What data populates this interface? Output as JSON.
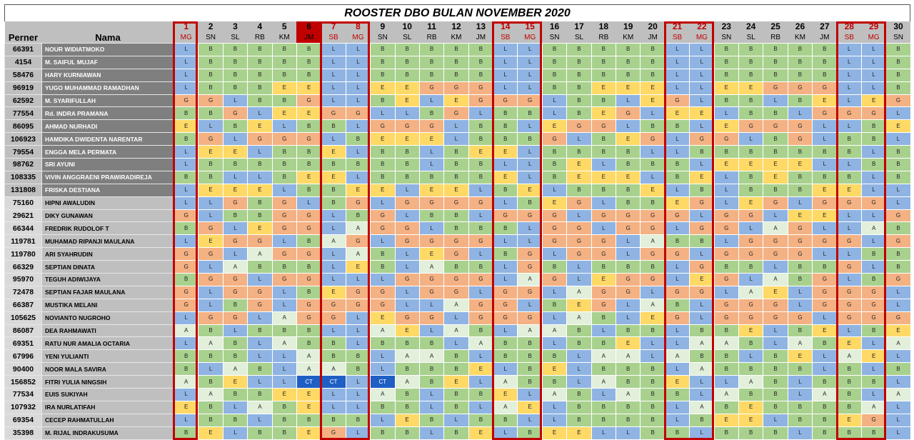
{
  "title": "ROOSTER DBO BULAN NOVEMBER 2020",
  "headers": {
    "perner": "Perner",
    "nama": "Nama"
  },
  "days": [
    {
      "num": "1",
      "code": "MG"
    },
    {
      "num": "2",
      "code": "SN"
    },
    {
      "num": "3",
      "code": "SL"
    },
    {
      "num": "4",
      "code": "RB"
    },
    {
      "num": "5",
      "code": "KM"
    },
    {
      "num": "6",
      "code": "JM"
    },
    {
      "num": "7",
      "code": "SB"
    },
    {
      "num": "8",
      "code": "MG"
    },
    {
      "num": "9",
      "code": "SN"
    },
    {
      "num": "10",
      "code": "SL"
    },
    {
      "num": "11",
      "code": "RB"
    },
    {
      "num": "12",
      "code": "KM"
    },
    {
      "num": "13",
      "code": "JM"
    },
    {
      "num": "14",
      "code": "SB"
    },
    {
      "num": "15",
      "code": "MG"
    },
    {
      "num": "16",
      "code": "SN"
    },
    {
      "num": "17",
      "code": "SL"
    },
    {
      "num": "18",
      "code": "RB"
    },
    {
      "num": "19",
      "code": "KM"
    },
    {
      "num": "20",
      "code": "JM"
    },
    {
      "num": "21",
      "code": "SB"
    },
    {
      "num": "22",
      "code": "MG"
    },
    {
      "num": "23",
      "code": "SN"
    },
    {
      "num": "24",
      "code": "SL"
    },
    {
      "num": "25",
      "code": "RB"
    },
    {
      "num": "26",
      "code": "KM"
    },
    {
      "num": "27",
      "code": "JM"
    },
    {
      "num": "28",
      "code": "SB"
    },
    {
      "num": "29",
      "code": "MG"
    },
    {
      "num": "30",
      "code": "SN"
    }
  ],
  "weekend_days": [
    1,
    7,
    8,
    14,
    15,
    21,
    22,
    28,
    29
  ],
  "holiday_days": [
    6
  ],
  "shift_colors": {
    "L": "#8fb4e3",
    "B": "#a9d18e",
    "G": "#f4b183",
    "E": "#ffd966",
    "A": "#e2efda",
    "CT": "#1f5fc4"
  },
  "accent_color": "#c00000",
  "rows": [
    {
      "perner": "66391",
      "nama": "NOUR WIDIATMOKO",
      "shifts": [
        "L",
        "B",
        "B",
        "B",
        "B",
        "B",
        "L",
        "L",
        "B",
        "B",
        "B",
        "B",
        "B",
        "L",
        "L",
        "B",
        "B",
        "B",
        "B",
        "B",
        "L",
        "L",
        "B",
        "B",
        "B",
        "B",
        "B",
        "L",
        "L",
        "B"
      ]
    },
    {
      "perner": "4154",
      "nama": "M. SAIFUL MUJAF",
      "shifts": [
        "L",
        "B",
        "B",
        "B",
        "B",
        "B",
        "L",
        "L",
        "B",
        "B",
        "B",
        "B",
        "B",
        "L",
        "L",
        "B",
        "B",
        "B",
        "B",
        "B",
        "L",
        "L",
        "B",
        "B",
        "B",
        "B",
        "B",
        "L",
        "L",
        "B"
      ]
    },
    {
      "perner": "58476",
      "nama": "HARY KURNIAWAN",
      "shifts": [
        "L",
        "B",
        "B",
        "B",
        "B",
        "B",
        "L",
        "L",
        "B",
        "B",
        "B",
        "B",
        "B",
        "L",
        "L",
        "B",
        "B",
        "B",
        "B",
        "B",
        "L",
        "L",
        "B",
        "B",
        "B",
        "B",
        "B",
        "L",
        "L",
        "B"
      ]
    },
    {
      "perner": "96919",
      "nama": "YUGO MUHAMMAD RAMADHAN",
      "shifts": [
        "L",
        "B",
        "B",
        "B",
        "E",
        "E",
        "L",
        "L",
        "E",
        "E",
        "G",
        "G",
        "G",
        "L",
        "L",
        "B",
        "B",
        "E",
        "E",
        "E",
        "L",
        "L",
        "E",
        "E",
        "G",
        "G",
        "G",
        "L",
        "L",
        "B"
      ]
    },
    {
      "perner": "62592",
      "nama": "M. SYARIFULLAH",
      "shifts": [
        "G",
        "G",
        "L",
        "B",
        "B",
        "G",
        "L",
        "L",
        "B",
        "E",
        "L",
        "E",
        "G",
        "G",
        "G",
        "L",
        "B",
        "B",
        "L",
        "E",
        "G",
        "L",
        "B",
        "B",
        "L",
        "B",
        "E",
        "L",
        "E",
        "G"
      ]
    },
    {
      "perner": "77554",
      "nama": "Rd. INDRA PRAMANA",
      "shifts": [
        "B",
        "B",
        "G",
        "L",
        "E",
        "E",
        "G",
        "G",
        "L",
        "L",
        "B",
        "G",
        "L",
        "B",
        "B",
        "L",
        "B",
        "E",
        "G",
        "L",
        "E",
        "E",
        "L",
        "B",
        "B",
        "L",
        "G",
        "G",
        "G",
        "L"
      ]
    },
    {
      "perner": "86095",
      "nama": "AHMAD NURHADI",
      "shifts": [
        "E",
        "L",
        "B",
        "E",
        "L",
        "B",
        "B",
        "L",
        "G",
        "G",
        "G",
        "L",
        "B",
        "B",
        "L",
        "E",
        "G",
        "G",
        "L",
        "B",
        "B",
        "L",
        "E",
        "G",
        "G",
        "G",
        "L",
        "L",
        "B",
        "E"
      ]
    },
    {
      "perner": "106923",
      "nama": "HAMDIKA DWIDENTA NARENTAR",
      "shifts": [
        "B",
        "G",
        "L",
        "G",
        "G",
        "G",
        "L",
        "B",
        "E",
        "E",
        "E",
        "L",
        "B",
        "B",
        "B",
        "G",
        "L",
        "B",
        "E",
        "G",
        "L",
        "G",
        "G",
        "L",
        "B",
        "G",
        "L",
        "B",
        "B",
        "L"
      ]
    },
    {
      "perner": "79554",
      "nama": "ENGGA MELA PERMATA",
      "shifts": [
        "L",
        "E",
        "E",
        "L",
        "B",
        "B",
        "E",
        "L",
        "B",
        "B",
        "L",
        "B",
        "E",
        "E",
        "L",
        "B",
        "B",
        "B",
        "B",
        "L",
        "L",
        "B",
        "B",
        "B",
        "B",
        "B",
        "B",
        "B",
        "L",
        "B"
      ]
    },
    {
      "perner": "98762",
      "nama": "SRI AYUNI",
      "shifts": [
        "L",
        "B",
        "B",
        "B",
        "B",
        "B",
        "B",
        "B",
        "B",
        "B",
        "L",
        "B",
        "B",
        "L",
        "L",
        "B",
        "E",
        "L",
        "B",
        "B",
        "B",
        "L",
        "E",
        "E",
        "E",
        "E",
        "L",
        "L",
        "B",
        "B"
      ]
    },
    {
      "perner": "108335",
      "nama": "VIVIN ANGGRAENI PRAWIRADIREJA",
      "shifts": [
        "B",
        "B",
        "L",
        "L",
        "B",
        "E",
        "E",
        "L",
        "B",
        "B",
        "B",
        "B",
        "B",
        "E",
        "L",
        "B",
        "E",
        "E",
        "E",
        "L",
        "B",
        "E",
        "L",
        "B",
        "E",
        "B",
        "B",
        "B",
        "L",
        "B"
      ]
    },
    {
      "perner": "131808",
      "nama": "FRISKA DESTIANA",
      "shifts": [
        "L",
        "E",
        "E",
        "E",
        "L",
        "B",
        "B",
        "E",
        "E",
        "L",
        "E",
        "E",
        "L",
        "B",
        "E",
        "L",
        "B",
        "B",
        "B",
        "E",
        "L",
        "B",
        "L",
        "B",
        "B",
        "B",
        "E",
        "E",
        "L",
        "L"
      ]
    },
    {
      "perner": "75160",
      "nama": "HIPNI AWALUDIN",
      "shifts": [
        "L",
        "L",
        "G",
        "B",
        "G",
        "L",
        "B",
        "G",
        "L",
        "G",
        "G",
        "G",
        "G",
        "L",
        "B",
        "E",
        "G",
        "L",
        "B",
        "B",
        "E",
        "G",
        "L",
        "E",
        "G",
        "L",
        "G",
        "G",
        "G",
        "L"
      ]
    },
    {
      "perner": "29621",
      "nama": "DIKY GUNAWAN",
      "shifts": [
        "G",
        "L",
        "B",
        "B",
        "G",
        "G",
        "L",
        "B",
        "G",
        "L",
        "B",
        "B",
        "L",
        "G",
        "G",
        "G",
        "L",
        "G",
        "G",
        "G",
        "G",
        "L",
        "G",
        "G",
        "L",
        "E",
        "E",
        "L",
        "L",
        "G"
      ]
    },
    {
      "perner": "66344",
      "nama": "FREDRIK RUDOLOF T",
      "shifts": [
        "B",
        "G",
        "L",
        "E",
        "G",
        "G",
        "L",
        "A",
        "G",
        "G",
        "L",
        "B",
        "B",
        "B",
        "L",
        "G",
        "G",
        "L",
        "G",
        "G",
        "L",
        "G",
        "G",
        "L",
        "A",
        "G",
        "L",
        "L",
        "A",
        "B"
      ]
    },
    {
      "perner": "119781",
      "nama": "MUHAMAD RIPANJI MAULANA",
      "shifts": [
        "L",
        "E",
        "G",
        "G",
        "L",
        "B",
        "A",
        "G",
        "L",
        "G",
        "G",
        "G",
        "G",
        "L",
        "L",
        "G",
        "G",
        "G",
        "L",
        "A",
        "B",
        "B",
        "L",
        "G",
        "G",
        "G",
        "G",
        "G",
        "L",
        "G"
      ]
    },
    {
      "perner": "119780",
      "nama": "ARI SYAHRUDIN",
      "shifts": [
        "G",
        "G",
        "L",
        "A",
        "G",
        "G",
        "L",
        "A",
        "B",
        "L",
        "E",
        "G",
        "L",
        "B",
        "G",
        "L",
        "G",
        "G",
        "L",
        "G",
        "G",
        "L",
        "G",
        "G",
        "G",
        "G",
        "L",
        "L",
        "B",
        "B"
      ]
    },
    {
      "perner": "66329",
      "nama": "SEPTIAN DINATA",
      "shifts": [
        "G",
        "L",
        "A",
        "B",
        "B",
        "B",
        "L",
        "E",
        "B",
        "L",
        "A",
        "B",
        "B",
        "L",
        "G",
        "B",
        "L",
        "B",
        "B",
        "B",
        "L",
        "G",
        "B",
        "B",
        "L",
        "B",
        "B",
        "G",
        "L",
        "B"
      ]
    },
    {
      "perner": "95970",
      "nama": "TEGUH ADIWIJAYA",
      "shifts": [
        "B",
        "G",
        "G",
        "L",
        "G",
        "G",
        "L",
        "L",
        "L",
        "G",
        "G",
        "G",
        "G",
        "L",
        "A",
        "G",
        "L",
        "E",
        "G",
        "G",
        "L",
        "E",
        "G",
        "L",
        "A",
        "B",
        "G",
        "L",
        "B",
        "G"
      ]
    },
    {
      "perner": "72478",
      "nama": "SEPTIAN FAJAR MAULANA",
      "shifts": [
        "G",
        "L",
        "G",
        "G",
        "L",
        "B",
        "E",
        "G",
        "G",
        "L",
        "G",
        "G",
        "L",
        "G",
        "G",
        "L",
        "A",
        "G",
        "G",
        "L",
        "G",
        "G",
        "L",
        "A",
        "E",
        "L",
        "G",
        "G",
        "G",
        "L"
      ]
    },
    {
      "perner": "66387",
      "nama": "MUSTIKA MELANI",
      "shifts": [
        "G",
        "L",
        "B",
        "G",
        "L",
        "G",
        "G",
        "G",
        "G",
        "L",
        "L",
        "A",
        "G",
        "G",
        "L",
        "B",
        "E",
        "G",
        "L",
        "A",
        "B",
        "L",
        "G",
        "G",
        "G",
        "L",
        "G",
        "G",
        "G",
        "L"
      ]
    },
    {
      "perner": "105625",
      "nama": "NOVIANTO NUGROHO",
      "shifts": [
        "L",
        "G",
        "G",
        "L",
        "A",
        "G",
        "G",
        "L",
        "E",
        "G",
        "G",
        "L",
        "G",
        "G",
        "G",
        "L",
        "A",
        "B",
        "L",
        "E",
        "G",
        "L",
        "G",
        "G",
        "G",
        "G",
        "L",
        "G",
        "G",
        "G"
      ]
    },
    {
      "perner": "86087",
      "nama": "DEA RAHMAWATI",
      "shifts": [
        "A",
        "B",
        "L",
        "B",
        "B",
        "B",
        "L",
        "L",
        "A",
        "E",
        "L",
        "A",
        "B",
        "L",
        "A",
        "A",
        "B",
        "L",
        "B",
        "B",
        "L",
        "B",
        "B",
        "E",
        "L",
        "B",
        "E",
        "L",
        "B",
        "E"
      ]
    },
    {
      "perner": "69351",
      "nama": "RATU NUR AMALIA OCTARIA",
      "shifts": [
        "L",
        "A",
        "B",
        "L",
        "A",
        "B",
        "B",
        "L",
        "B",
        "B",
        "B",
        "L",
        "A",
        "B",
        "B",
        "L",
        "B",
        "B",
        "E",
        "L",
        "L",
        "A",
        "A",
        "B",
        "L",
        "A",
        "B",
        "E",
        "L",
        "A"
      ]
    },
    {
      "perner": "67996",
      "nama": "YENI YULIANTI",
      "shifts": [
        "B",
        "B",
        "B",
        "L",
        "L",
        "A",
        "B",
        "B",
        "L",
        "A",
        "A",
        "B",
        "L",
        "B",
        "B",
        "B",
        "L",
        "A",
        "A",
        "L",
        "A",
        "B",
        "B",
        "L",
        "B",
        "E",
        "L",
        "A",
        "E",
        "L"
      ]
    },
    {
      "perner": "90400",
      "nama": "NOOR MALA SAVIRA",
      "shifts": [
        "B",
        "L",
        "A",
        "B",
        "L",
        "A",
        "A",
        "B",
        "L",
        "B",
        "B",
        "B",
        "E",
        "L",
        "B",
        "E",
        "L",
        "B",
        "B",
        "B",
        "L",
        "A",
        "B",
        "B",
        "B",
        "B",
        "L",
        "B",
        "L",
        "B"
      ]
    },
    {
      "perner": "156852",
      "nama": "FITRI YULIA NINGSIH",
      "shifts": [
        "A",
        "B",
        "E",
        "L",
        "L",
        "CT",
        "CT",
        "L",
        "CT",
        "A",
        "B",
        "E",
        "L",
        "A",
        "B",
        "B",
        "L",
        "A",
        "B",
        "B",
        "E",
        "L",
        "L",
        "A",
        "B",
        "L",
        "B",
        "B",
        "B",
        "L"
      ]
    },
    {
      "perner": "77534",
      "nama": "EUIS SUKIYAH",
      "shifts": [
        "L",
        "A",
        "B",
        "B",
        "E",
        "E",
        "L",
        "L",
        "A",
        "B",
        "L",
        "B",
        "B",
        "E",
        "L",
        "A",
        "B",
        "L",
        "A",
        "B",
        "B",
        "L",
        "A",
        "B",
        "B",
        "L",
        "A",
        "B",
        "L",
        "A"
      ]
    },
    {
      "perner": "107932",
      "nama": "IRA NURLATIFAH",
      "shifts": [
        "E",
        "B",
        "L",
        "A",
        "B",
        "E",
        "L",
        "L",
        "B",
        "B",
        "L",
        "B",
        "L",
        "A",
        "E",
        "L",
        "B",
        "B",
        "B",
        "B",
        "L",
        "A",
        "B",
        "E",
        "B",
        "B",
        "B",
        "B",
        "A",
        "L"
      ]
    },
    {
      "perner": "69354",
      "nama": "CECEP RAHMATULLAH",
      "shifts": [
        "L",
        "B",
        "B",
        "L",
        "B",
        "B",
        "B",
        "B",
        "L",
        "E",
        "B",
        "L",
        "B",
        "B",
        "L",
        "L",
        "B",
        "B",
        "B",
        "B",
        "L",
        "B",
        "E",
        "E",
        "L",
        "B",
        "B",
        "E",
        "G",
        "L"
      ]
    },
    {
      "perner": "35398",
      "nama": "M. RIJAL INDRAKUSUMA",
      "shifts": [
        "B",
        "E",
        "L",
        "B",
        "B",
        "E",
        "G",
        "L",
        "B",
        "B",
        "L",
        "B",
        "E",
        "L",
        "B",
        "E",
        "E",
        "L",
        "L",
        "B",
        "B",
        "L",
        "B",
        "B",
        "B",
        "L",
        "B",
        "B",
        "B",
        "L"
      ]
    }
  ]
}
